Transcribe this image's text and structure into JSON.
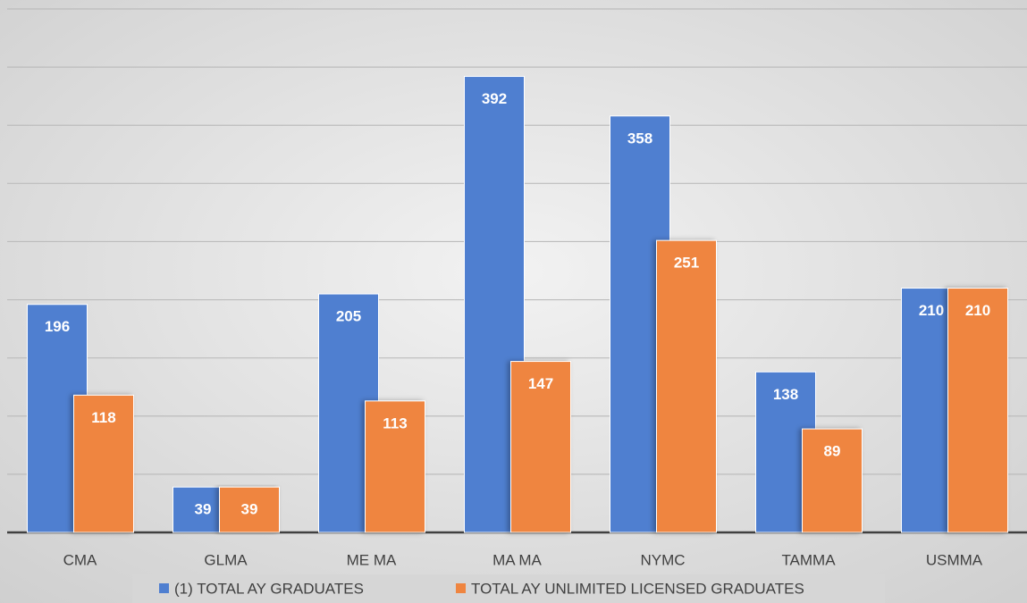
{
  "chart_data": {
    "type": "bar",
    "categories": [
      "CMA",
      "GLMA",
      "ME MA",
      "MA MA",
      "NYMC",
      "TAMMA",
      "USMMA"
    ],
    "series": [
      {
        "name": "(1) TOTAL AY GRADUATES",
        "color": "#4f7fd0",
        "values": [
          196,
          39,
          205,
          392,
          358,
          138,
          210
        ]
      },
      {
        "name": "TOTAL AY UNLIMITED LICENSED GRADUATES",
        "color": "#ef8540",
        "values": [
          118,
          39,
          113,
          147,
          251,
          89,
          210
        ]
      }
    ],
    "ylim": [
      0,
      450
    ],
    "yticks": [
      0,
      50,
      100,
      150,
      200,
      250,
      300,
      350,
      400,
      450
    ],
    "grid": true,
    "legend": "bottom"
  }
}
